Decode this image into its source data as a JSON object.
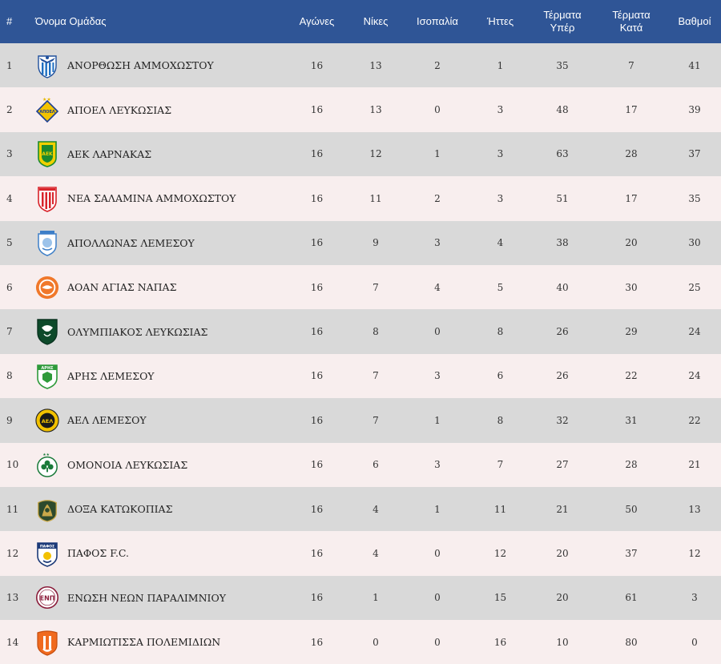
{
  "headers": {
    "num": "#",
    "team": "Όνομα Ομάδας",
    "played": "Αγώνες",
    "wins": "Νίκες",
    "draws": "Ισοπαλία",
    "losses": "Ήττες",
    "gf_line1": "Τέρματα",
    "gf_line2": "Υπέρ",
    "ga_line1": "Τέρματα",
    "ga_line2": "Κατά",
    "points": "Βαθμοί"
  },
  "rows": [
    {
      "pos": "1",
      "team": "ΑΝΟΡΘΩΣΗ ΑΜΜΟΧΩΣΤΟΥ",
      "logo_icon": "anorthosis-logo-icon",
      "played": "16",
      "wins": "13",
      "draws": "2",
      "losses": "1",
      "gf": "35",
      "ga": "7",
      "pts": "41"
    },
    {
      "pos": "2",
      "team": "ΑΠΟΕΛ ΛΕΥΚΩΣΙΑΣ",
      "logo_icon": "apoel-logo-icon",
      "played": "16",
      "wins": "13",
      "draws": "0",
      "losses": "3",
      "gf": "48",
      "ga": "17",
      "pts": "39"
    },
    {
      "pos": "3",
      "team": "ΑΕΚ ΛΑΡΝΑΚΑΣ",
      "logo_icon": "aek-logo-icon",
      "played": "16",
      "wins": "12",
      "draws": "1",
      "losses": "3",
      "gf": "63",
      "ga": "28",
      "pts": "37"
    },
    {
      "pos": "4",
      "team": "ΝΕΑ ΣΑΛΑΜΙΝΑ ΑΜΜΟΧΩΣΤΟΥ",
      "logo_icon": "nea-salamina-logo-icon",
      "played": "16",
      "wins": "11",
      "draws": "2",
      "losses": "3",
      "gf": "51",
      "ga": "17",
      "pts": "35"
    },
    {
      "pos": "5",
      "team": "ΑΠΟΛΛΩΝΑΣ ΛΕΜΕΣΟΥ",
      "logo_icon": "apollon-logo-icon",
      "played": "16",
      "wins": "9",
      "draws": "3",
      "losses": "4",
      "gf": "38",
      "ga": "20",
      "pts": "30"
    },
    {
      "pos": "6",
      "team": "ΑΟΑΝ ΑΓΙΑΣ ΝΑΠΑΣ",
      "logo_icon": "aoan-logo-icon",
      "played": "16",
      "wins": "7",
      "draws": "4",
      "losses": "5",
      "gf": "40",
      "ga": "30",
      "pts": "25"
    },
    {
      "pos": "7",
      "team": "ΟΛΥΜΠΙΑΚΟΣ ΛΕΥΚΩΣΙΑΣ",
      "logo_icon": "olympiakos-logo-icon",
      "played": "16",
      "wins": "8",
      "draws": "0",
      "losses": "8",
      "gf": "26",
      "ga": "29",
      "pts": "24"
    },
    {
      "pos": "8",
      "team": "ΑΡΗΣ ΛΕΜΕΣΟΥ",
      "logo_icon": "aris-logo-icon",
      "played": "16",
      "wins": "7",
      "draws": "3",
      "losses": "6",
      "gf": "26",
      "ga": "22",
      "pts": "24"
    },
    {
      "pos": "9",
      "team": "ΑΕΛ ΛΕΜΕΣΟΥ",
      "logo_icon": "ael-logo-icon",
      "played": "16",
      "wins": "7",
      "draws": "1",
      "losses": "8",
      "gf": "32",
      "ga": "31",
      "pts": "22"
    },
    {
      "pos": "10",
      "team": "ΟΜΟΝΟΙΑ ΛΕΥΚΩΣΙΑΣ",
      "logo_icon": "omonoia-logo-icon",
      "played": "16",
      "wins": "6",
      "draws": "3",
      "losses": "7",
      "gf": "27",
      "ga": "28",
      "pts": "21"
    },
    {
      "pos": "11",
      "team": "ΔΟΞΑ ΚΑΤΩΚΟΠΙΑΣ",
      "logo_icon": "doxa-logo-icon",
      "played": "16",
      "wins": "4",
      "draws": "1",
      "losses": "11",
      "gf": "21",
      "ga": "50",
      "pts": "13"
    },
    {
      "pos": "12",
      "team": "ΠΑΦΟΣ F.C.",
      "logo_icon": "pafos-logo-icon",
      "played": "16",
      "wins": "4",
      "draws": "0",
      "losses": "12",
      "gf": "20",
      "ga": "37",
      "pts": "12"
    },
    {
      "pos": "13",
      "team": "ΕΝΩΣΗ ΝΕΩΝ ΠΑΡΑΛΙΜΝΙΟΥ",
      "logo_icon": "enp-logo-icon",
      "played": "16",
      "wins": "1",
      "draws": "0",
      "losses": "15",
      "gf": "20",
      "ga": "61",
      "pts": "3"
    },
    {
      "pos": "14",
      "team": "ΚΑΡΜΙΩΤΙΣΣΑ ΠΟΛΕΜΙΔΙΩΝ",
      "logo_icon": "karmiotissa-logo-icon",
      "played": "16",
      "wins": "0",
      "draws": "0",
      "losses": "16",
      "gf": "10",
      "ga": "80",
      "pts": "0"
    }
  ],
  "logo_text": {
    "apoel": "ΑΠΟΕΛ",
    "aek": "ΑΕΚ",
    "aris": "ΑΡΗΣ",
    "ael": "ΑΕΛ",
    "pafos": "ΠΑΦΟΣ",
    "enp": "ΕΝΠ"
  },
  "colors": {
    "header_bg": "#2f5596",
    "row_odd_bg": "#d9d9d9",
    "row_even_bg": "#f8eeee"
  }
}
